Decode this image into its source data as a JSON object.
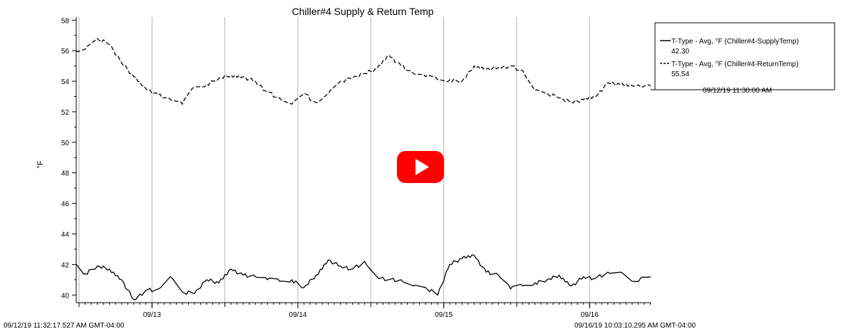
{
  "chart_data": {
    "type": "line",
    "title": "Chiller#4 Supply & Return Temp",
    "ylabel": "°F",
    "xlabel": "",
    "ylim": [
      39.5,
      58.2
    ],
    "xlim": [
      "09/12/19 11:32:17.527",
      "09/16/19 10:03:10.295"
    ],
    "yticks": [
      40,
      42,
      44,
      46,
      48,
      50,
      52,
      54,
      56,
      58
    ],
    "x_ticks": [
      {
        "label": "09/13",
        "x": "09/13/19 00:00"
      },
      {
        "label": "09/14",
        "x": "09/14/19 00:00"
      },
      {
        "label": "09/15",
        "x": "09/15/19 00:00"
      },
      {
        "label": "09/16",
        "x": "09/16/19 00:00"
      }
    ],
    "grid_lines_x": [
      "09/12/19 12:00",
      "09/13/19 00:00",
      "09/13/19 12:00",
      "09/14/19 00:00",
      "09/14/19 12:00",
      "09/15/19 00:00",
      "09/15/19 12:00",
      "09/16/19 00:00"
    ],
    "range_start_label": "09/12/19 11:32:17.527 AM GMT-04:00",
    "range_end_label": "09/16/19 10:03:10.295 AM GMT-04:00",
    "legend_placement": "top-right",
    "series": [
      {
        "name": "T-Type - Avg, °F (Chiller#4-SupplyTemp)",
        "current_value": "42.30",
        "style": "solid",
        "x": [
          "09/12/19 11:32",
          "09/12/19 13:00",
          "09/12/19 15:00",
          "09/12/19 17:00",
          "09/12/19 19:00",
          "09/12/19 21:00",
          "09/12/19 23:00",
          "09/13/19 01:00",
          "09/13/19 03:00",
          "09/13/19 05:00",
          "09/13/19 07:00",
          "09/13/19 09:00",
          "09/13/19 11:00",
          "09/13/19 13:00",
          "09/13/19 15:00",
          "09/13/19 17:00",
          "09/13/19 19:00",
          "09/13/19 21:00",
          "09/13/19 23:00",
          "09/14/19 01:00",
          "09/14/19 03:00",
          "09/14/19 05:00",
          "09/14/19 07:00",
          "09/14/19 09:00",
          "09/14/19 11:00",
          "09/14/19 13:00",
          "09/14/19 15:00",
          "09/14/19 17:00",
          "09/14/19 19:00",
          "09/14/19 21:00",
          "09/14/19 23:00",
          "09/15/19 01:00",
          "09/15/19 03:00",
          "09/15/19 05:00",
          "09/15/19 07:00",
          "09/15/19 09:00",
          "09/15/19 11:00",
          "09/15/19 13:00",
          "09/15/19 15:00",
          "09/15/19 17:00",
          "09/15/19 19:00",
          "09/15/19 21:00",
          "09/15/19 23:00",
          "09/16/19 01:00",
          "09/16/19 03:00",
          "09/16/19 05:00",
          "09/16/19 07:00",
          "09/16/19 10:03"
        ],
        "values": [
          42.0,
          41.4,
          41.9,
          41.7,
          41.0,
          39.7,
          40.3,
          40.4,
          41.2,
          40.2,
          40.1,
          41.0,
          40.8,
          41.7,
          41.3,
          41.2,
          41.0,
          40.9,
          41.0,
          40.5,
          41.3,
          42.3,
          41.9,
          41.7,
          42.2,
          41.2,
          41.0,
          41.0,
          40.6,
          40.5,
          40.0,
          42.0,
          42.4,
          42.6,
          41.5,
          41.3,
          40.4,
          40.6,
          40.8,
          41.0,
          41.3,
          40.6,
          41.2,
          41.1,
          41.5,
          41.5,
          40.9,
          41.2
        ]
      },
      {
        "name": "T-Type - Avg, °F (Chiller#4-ReturnTemp)",
        "current_value": "55.54",
        "style": "dashed",
        "x": [
          "09/12/19 11:32",
          "09/12/19 13:00",
          "09/12/19 15:00",
          "09/12/19 17:00",
          "09/12/19 19:00",
          "09/12/19 21:00",
          "09/12/19 23:00",
          "09/13/19 01:00",
          "09/13/19 03:00",
          "09/13/19 05:00",
          "09/13/19 07:00",
          "09/13/19 09:00",
          "09/13/19 11:00",
          "09/13/19 13:00",
          "09/13/19 15:00",
          "09/13/19 17:00",
          "09/13/19 19:00",
          "09/13/19 21:00",
          "09/13/19 23:00",
          "09/14/19 01:00",
          "09/14/19 03:00",
          "09/14/19 05:00",
          "09/14/19 07:00",
          "09/14/19 09:00",
          "09/14/19 11:00",
          "09/14/19 13:00",
          "09/14/19 15:00",
          "09/14/19 17:00",
          "09/14/19 19:00",
          "09/14/19 21:00",
          "09/14/19 23:00",
          "09/15/19 01:00",
          "09/15/19 03:00",
          "09/15/19 05:00",
          "09/15/19 07:00",
          "09/15/19 09:00",
          "09/15/19 11:00",
          "09/15/19 13:00",
          "09/15/19 15:00",
          "09/15/19 17:00",
          "09/15/19 19:00",
          "09/15/19 21:00",
          "09/15/19 23:00",
          "09/16/19 01:00",
          "09/16/19 03:00",
          "09/16/19 05:00",
          "09/16/19 07:00",
          "09/16/19 10:03"
        ],
        "values": [
          56.0,
          56.1,
          56.8,
          56.4,
          55.2,
          54.3,
          53.5,
          53.1,
          52.8,
          52.5,
          53.6,
          53.8,
          54.2,
          54.4,
          54.3,
          54.0,
          53.3,
          52.9,
          52.5,
          53.2,
          52.6,
          53.2,
          54.0,
          54.2,
          54.5,
          54.8,
          55.7,
          55.0,
          54.5,
          54.3,
          54.1,
          54.1,
          54.0,
          55.0,
          54.8,
          54.9,
          55.0,
          54.7,
          53.4,
          53.2,
          52.9,
          52.6,
          52.8,
          53.0,
          53.9,
          53.8,
          53.7,
          53.7
        ]
      }
    ],
    "legend_timestamp": "09/12/19 11:30:00 AM"
  },
  "overlay": {
    "play_button_color": "#ff0000"
  }
}
